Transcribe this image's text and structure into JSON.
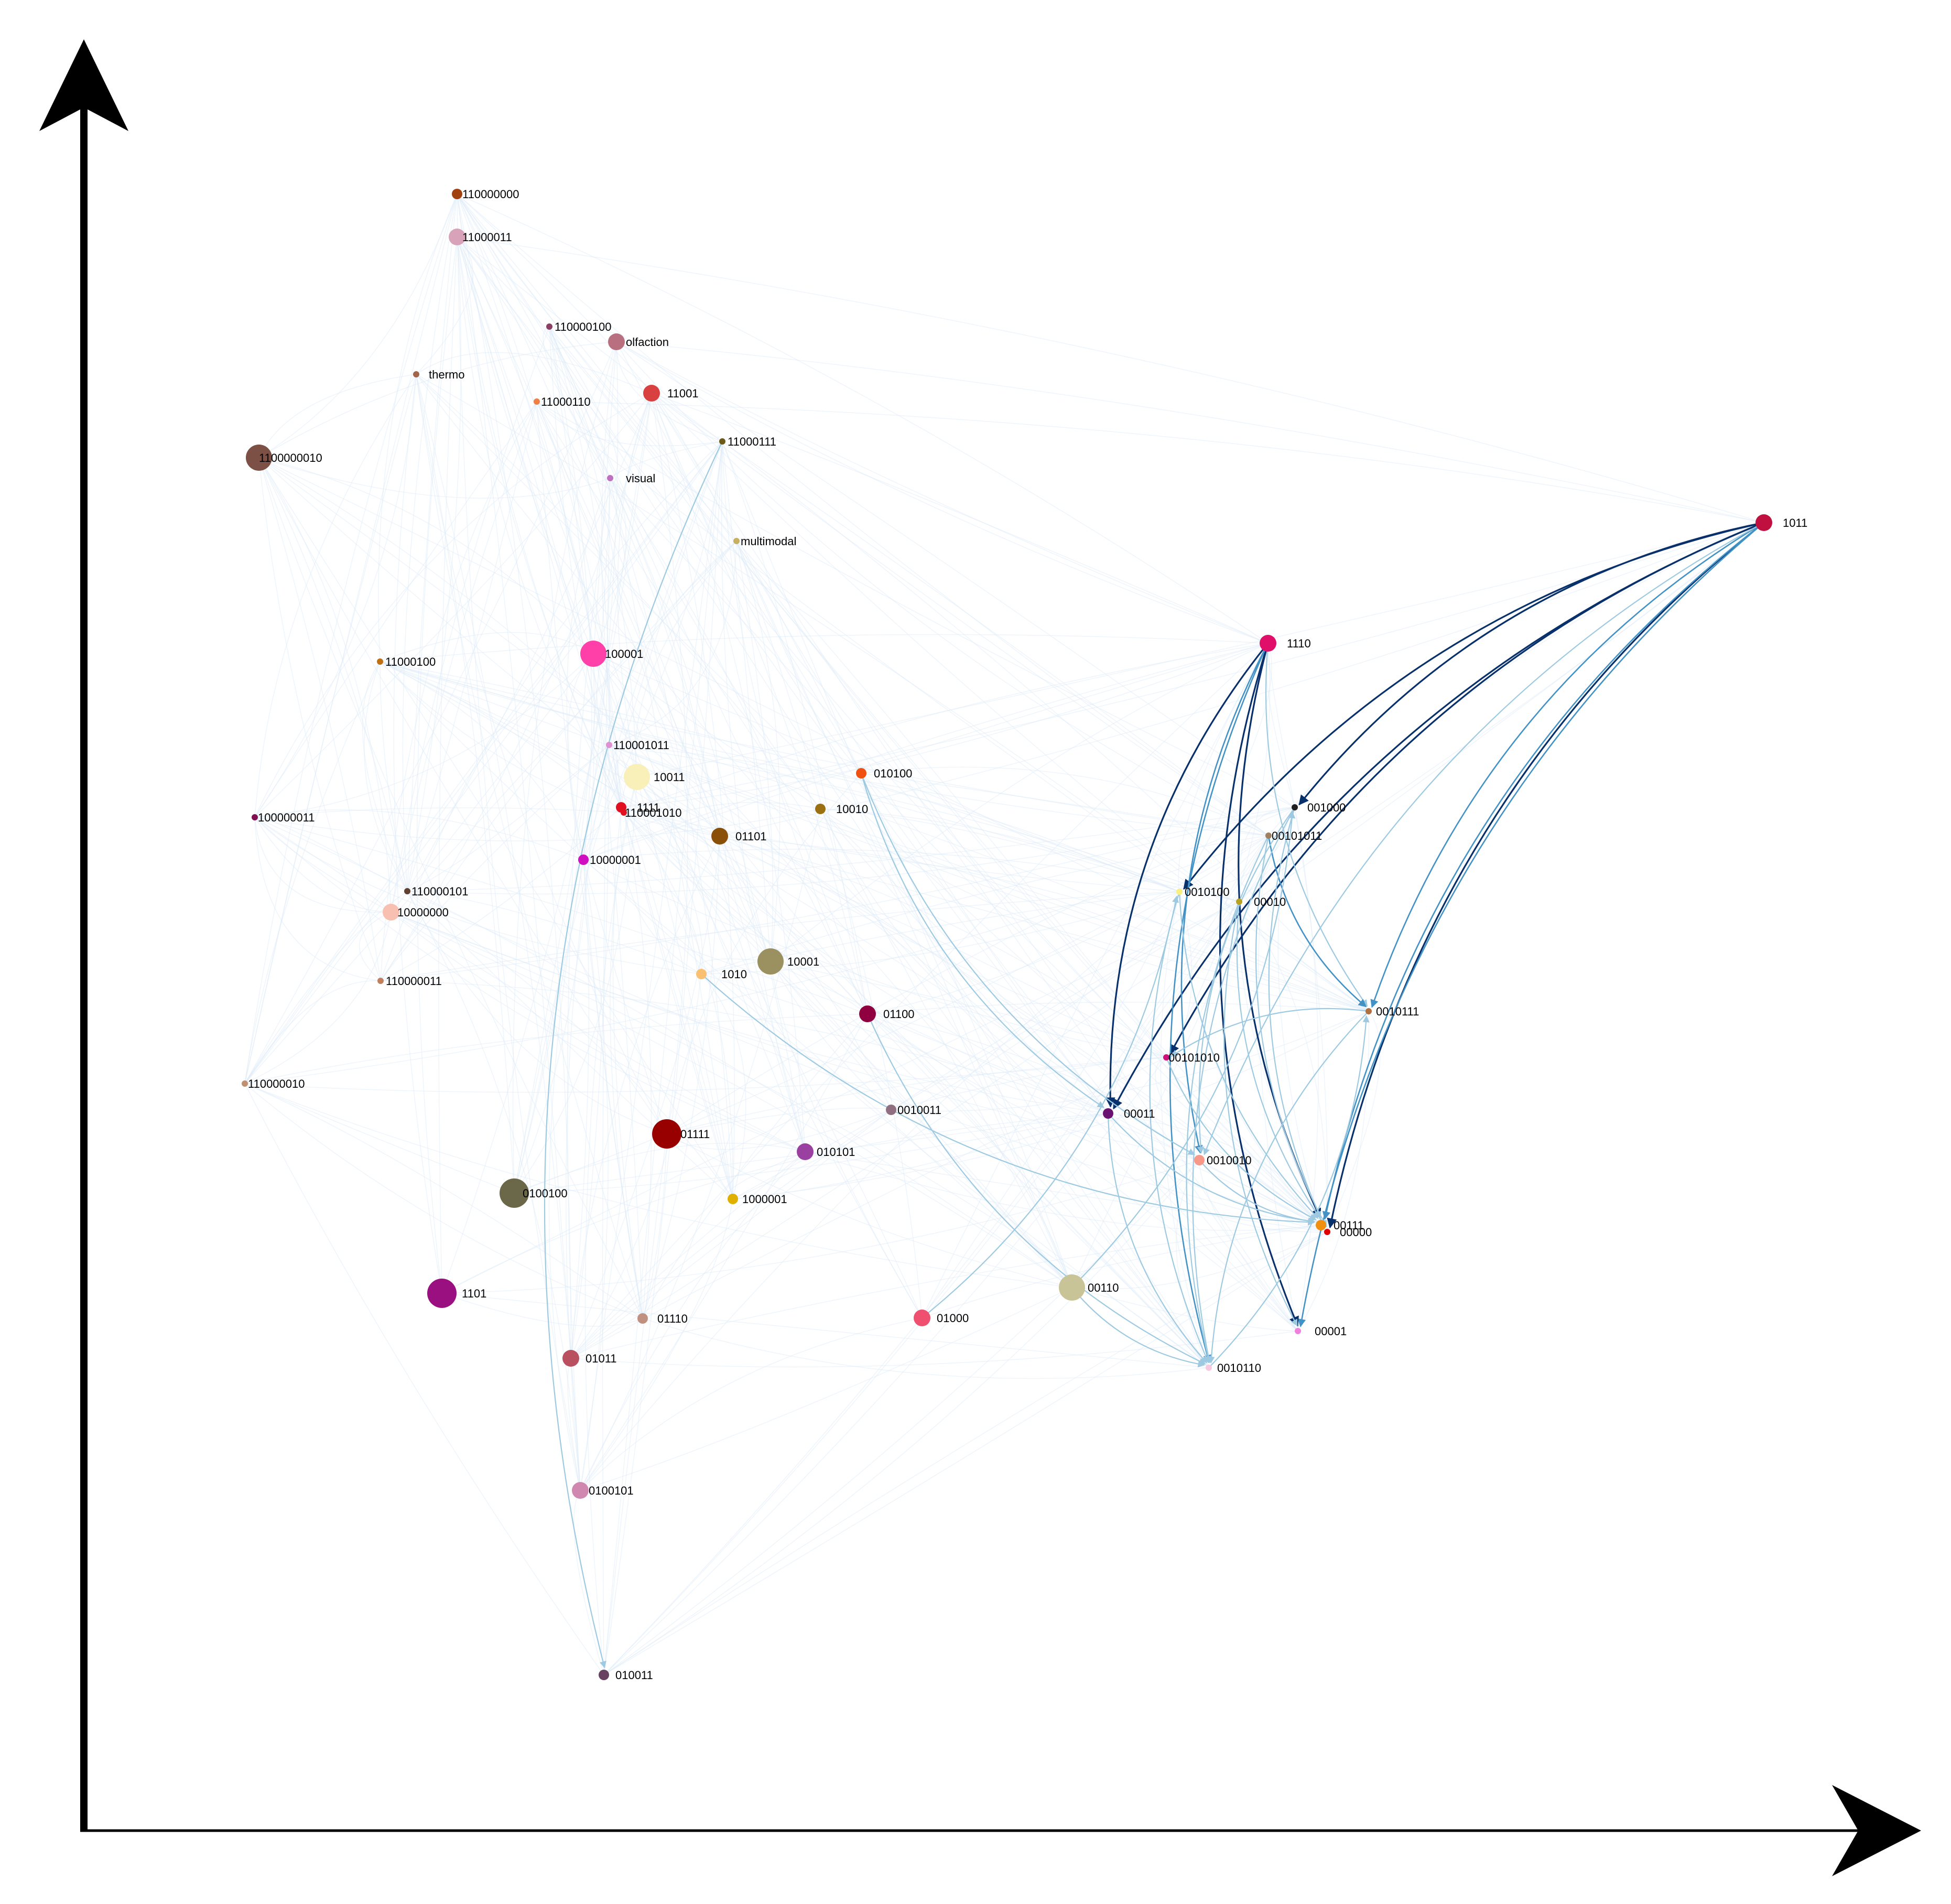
{
  "colors": {
    "axis": "#000000",
    "edge_faint": "#deebf7",
    "edge_light": "#9ecae1",
    "edge_mid": "#4292c6",
    "edge_dark": "#08306b",
    "background": "#ffffff"
  },
  "nodes": [
    {
      "id": "110000000",
      "label": "110000000",
      "color": "#a0410f",
      "size": "small"
    },
    {
      "id": "11000011",
      "label": "11000011",
      "color": "#d8a2b8",
      "size": "medium"
    },
    {
      "id": "110000100",
      "label": "110000100",
      "color": "#8b3f62",
      "size": "tiny"
    },
    {
      "id": "olfaction",
      "label": "olfaction",
      "color": "#b87080",
      "size": "medium"
    },
    {
      "id": "thermo",
      "label": "thermo",
      "color": "#a0654a",
      "size": "tiny"
    },
    {
      "id": "11000110",
      "label": "11000110",
      "color": "#f07f45",
      "size": "tiny"
    },
    {
      "id": "11001",
      "label": "11001",
      "color": "#d94040",
      "size": "medium"
    },
    {
      "id": "1100000010",
      "label": "1100000010",
      "color": "#7c5045",
      "size": "large"
    },
    {
      "id": "11000111",
      "label": "11000111",
      "color": "#6b5a1a",
      "size": "tiny"
    },
    {
      "id": "visual",
      "label": "visual",
      "color": "#c070c0",
      "size": "tiny"
    },
    {
      "id": "multimodal",
      "label": "multimodal",
      "color": "#c8b060",
      "size": "tiny"
    },
    {
      "id": "1011",
      "label": "1011",
      "color": "#c01040",
      "size": "medium"
    },
    {
      "id": "1110",
      "label": "1110",
      "color": "#e0106a",
      "size": "medium"
    },
    {
      "id": "11000100",
      "label": "11000100",
      "color": "#c07010",
      "size": "tiny"
    },
    {
      "id": "100001",
      "label": "100001",
      "color": "#ff40a8",
      "size": "large"
    },
    {
      "id": "110001011",
      "label": "110001011",
      "color": "#e090d0",
      "size": "tiny"
    },
    {
      "id": "10011",
      "label": "10011",
      "color": "#f8f0b8",
      "size": "large"
    },
    {
      "id": "010100",
      "label": "010100",
      "color": "#f05010",
      "size": "small"
    },
    {
      "id": "1111",
      "label": "1111",
      "color": "#e01020",
      "size": "small"
    },
    {
      "id": "110001010",
      "label": "110001010",
      "color": "#e01020",
      "size": "tiny"
    },
    {
      "id": "10010",
      "label": "10010",
      "color": "#9a7010",
      "size": "small"
    },
    {
      "id": "01101",
      "label": "01101",
      "color": "#8a5008",
      "size": "medium"
    },
    {
      "id": "001000",
      "label": "001000",
      "color": "#202020",
      "size": "tiny"
    },
    {
      "id": "00101011",
      "label": "00101011",
      "color": "#a08060",
      "size": "tiny"
    },
    {
      "id": "100000011",
      "label": "100000011",
      "color": "#801050",
      "size": "tiny"
    },
    {
      "id": "10000001",
      "label": "10000001",
      "color": "#d010c0",
      "size": "small"
    },
    {
      "id": "110000101",
      "label": "110000101",
      "color": "#604030",
      "size": "tiny"
    },
    {
      "id": "10000000",
      "label": "10000000",
      "color": "#f8c0b0",
      "size": "medium"
    },
    {
      "id": "0010100",
      "label": "0010100",
      "color": "#f8f080",
      "size": "tiny"
    },
    {
      "id": "00010",
      "label": "00010",
      "color": "#b8a020",
      "size": "tiny"
    },
    {
      "id": "1010",
      "label": "1010",
      "color": "#f8c070",
      "size": "small"
    },
    {
      "id": "10001",
      "label": "10001",
      "color": "#9a9060",
      "size": "large"
    },
    {
      "id": "110000011",
      "label": "110000011",
      "color": "#c08060",
      "size": "tiny"
    },
    {
      "id": "01100",
      "label": "01100",
      "color": "#900040",
      "size": "medium"
    },
    {
      "id": "0010111",
      "label": "0010111",
      "color": "#b07040",
      "size": "tiny"
    },
    {
      "id": "00101010",
      "label": "00101010",
      "color": "#d0107a",
      "size": "tiny"
    },
    {
      "id": "110000010",
      "label": "110000010",
      "color": "#c09070",
      "size": "tiny"
    },
    {
      "id": "0010011",
      "label": "0010011",
      "color": "#907080",
      "size": "small"
    },
    {
      "id": "00011",
      "label": "00011",
      "color": "#6a1070",
      "size": "small"
    },
    {
      "id": "01111",
      "label": "01111",
      "color": "#980000",
      "size": "xlarge"
    },
    {
      "id": "010101",
      "label": "010101",
      "color": "#9a40a0",
      "size": "medium"
    },
    {
      "id": "0010010",
      "label": "0010010",
      "color": "#f89888",
      "size": "small"
    },
    {
      "id": "0100100",
      "label": "0100100",
      "color": "#6a6848",
      "size": "xlarge"
    },
    {
      "id": "1000001",
      "label": "1000001",
      "color": "#e0b000",
      "size": "small"
    },
    {
      "id": "00111",
      "label": "00111",
      "color": "#f09010",
      "size": "small"
    },
    {
      "id": "00000",
      "label": "00000",
      "color": "#e00000",
      "size": "tiny"
    },
    {
      "id": "1101",
      "label": "1101",
      "color": "#9a1080",
      "size": "xlarge"
    },
    {
      "id": "00110",
      "label": "00110",
      "color": "#c8c498",
      "size": "large"
    },
    {
      "id": "01110",
      "label": "01110",
      "color": "#c09080",
      "size": "small"
    },
    {
      "id": "01000",
      "label": "01000",
      "color": "#f05070",
      "size": "medium"
    },
    {
      "id": "00001",
      "label": "00001",
      "color": "#f080e0",
      "size": "tiny"
    },
    {
      "id": "01011",
      "label": "01011",
      "color": "#b85060",
      "size": "medium"
    },
    {
      "id": "0010110",
      "label": "0010110",
      "color": "#f8c8e0",
      "size": "tiny"
    },
    {
      "id": "0100101",
      "label": "0100101",
      "color": "#d088b0",
      "size": "medium"
    },
    {
      "id": "010011",
      "label": "010011",
      "color": "#684060",
      "size": "small"
    }
  ],
  "edges": [
    {
      "from": "1011",
      "to": "0010100",
      "weight": "dark"
    },
    {
      "from": "1011",
      "to": "001000",
      "weight": "dark"
    },
    {
      "from": "1011",
      "to": "00101010",
      "weight": "dark"
    },
    {
      "from": "1011",
      "to": "00011",
      "weight": "dark"
    },
    {
      "from": "1011",
      "to": "00000",
      "weight": "dark"
    },
    {
      "from": "1011",
      "to": "00111",
      "weight": "mid"
    },
    {
      "from": "1011",
      "to": "0010111",
      "weight": "mid"
    },
    {
      "from": "1011",
      "to": "00001",
      "weight": "mid"
    },
    {
      "from": "1011",
      "to": "0010010",
      "weight": "light"
    },
    {
      "from": "1110",
      "to": "00011",
      "weight": "dark"
    },
    {
      "from": "1110",
      "to": "00001",
      "weight": "dark"
    },
    {
      "from": "1110",
      "to": "00111",
      "weight": "dark"
    },
    {
      "from": "1110",
      "to": "0010010",
      "weight": "mid"
    },
    {
      "from": "1110",
      "to": "0010110",
      "weight": "mid"
    },
    {
      "from": "1110",
      "to": "0010111",
      "weight": "light"
    },
    {
      "from": "00101011",
      "to": "0010111",
      "weight": "mid"
    },
    {
      "from": "00101011",
      "to": "0010110",
      "weight": "light"
    },
    {
      "from": "00101011",
      "to": "00000",
      "weight": "light"
    },
    {
      "from": "001000",
      "to": "0010010",
      "weight": "light"
    },
    {
      "from": "001000",
      "to": "00111",
      "weight": "light"
    },
    {
      "from": "001000",
      "to": "0010110",
      "weight": "light"
    },
    {
      "from": "0010100",
      "to": "00111",
      "weight": "light"
    },
    {
      "from": "0010100",
      "to": "0010110",
      "weight": "light"
    },
    {
      "from": "00010",
      "to": "00000",
      "weight": "light"
    },
    {
      "from": "00010",
      "to": "00001",
      "weight": "light"
    },
    {
      "from": "010100",
      "to": "00011",
      "weight": "light"
    },
    {
      "from": "010100",
      "to": "0010010",
      "weight": "light"
    },
    {
      "from": "0010111",
      "to": "0010110",
      "weight": "light"
    },
    {
      "from": "0010111",
      "to": "00101010",
      "weight": "light"
    },
    {
      "from": "00101010",
      "to": "00111",
      "weight": "light"
    },
    {
      "from": "00011",
      "to": "00111",
      "weight": "light"
    },
    {
      "from": "00011",
      "to": "0010110",
      "weight": "light"
    },
    {
      "from": "00110",
      "to": "0010110",
      "weight": "light"
    },
    {
      "from": "00110",
      "to": "001000",
      "weight": "light"
    },
    {
      "from": "01000",
      "to": "0010100",
      "weight": "light"
    },
    {
      "from": "0010010",
      "to": "00111",
      "weight": "light"
    },
    {
      "from": "1010",
      "to": "00111",
      "weight": "light"
    },
    {
      "from": "01100",
      "to": "0010110",
      "weight": "light"
    },
    {
      "from": "11000111",
      "to": "010011",
      "weight": "light"
    },
    {
      "from": "0010110",
      "to": "0010111",
      "weight": "light"
    }
  ]
}
